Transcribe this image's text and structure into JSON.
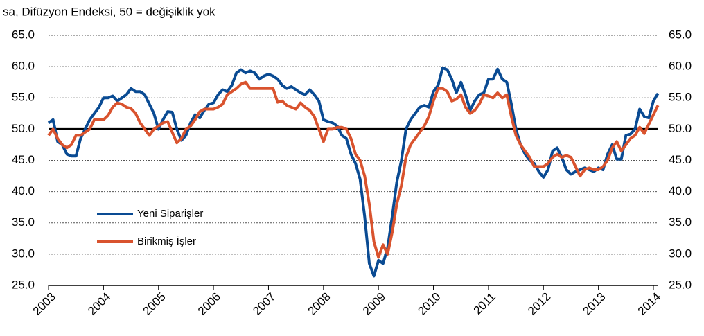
{
  "chart_data": {
    "type": "line",
    "title": "sa, Difüzyon Endeksi,  50 = değişiklik  yok",
    "categories": [
      "2003",
      null,
      null,
      null,
      null,
      null,
      null,
      null,
      null,
      null,
      null,
      null,
      "2004",
      null,
      null,
      null,
      null,
      null,
      null,
      null,
      null,
      null,
      null,
      null,
      "2005",
      null,
      null,
      null,
      null,
      null,
      null,
      null,
      null,
      null,
      null,
      null,
      "2006",
      null,
      null,
      null,
      null,
      null,
      null,
      null,
      null,
      null,
      null,
      null,
      "2007",
      null,
      null,
      null,
      null,
      null,
      null,
      null,
      null,
      null,
      null,
      null,
      "2008",
      null,
      null,
      null,
      null,
      null,
      null,
      null,
      null,
      null,
      null,
      null,
      "2009",
      null,
      null,
      null,
      null,
      null,
      null,
      null,
      null,
      null,
      null,
      null,
      "2010",
      null,
      null,
      null,
      null,
      null,
      null,
      null,
      null,
      null,
      null,
      null,
      "2011",
      null,
      null,
      null,
      null,
      null,
      null,
      null,
      null,
      null,
      null,
      null,
      "2012",
      null,
      null,
      null,
      null,
      null,
      null,
      null,
      null,
      null,
      null,
      null,
      "2013",
      null,
      null,
      null,
      null,
      null,
      null,
      null,
      null,
      null,
      null,
      null,
      "2014",
      null
    ],
    "series": [
      {
        "name": "Yeni Siparişler",
        "color": "#0a4b93",
        "values": [
          51,
          51.5,
          48,
          47.5,
          46,
          45.7,
          45.7,
          48.5,
          50,
          51.5,
          52.5,
          53.5,
          55,
          55,
          55.3,
          54.5,
          55,
          55.5,
          56.5,
          56,
          56,
          55.5,
          54,
          52.5,
          50,
          51.5,
          52.8,
          52.7,
          50,
          48.2,
          49,
          51,
          52.3,
          51.8,
          53,
          54,
          54.2,
          55.5,
          56.3,
          56,
          57,
          59,
          59.5,
          59,
          59.3,
          59,
          58,
          58.5,
          58.8,
          58.5,
          58,
          57,
          56.5,
          56.8,
          56.3,
          55.8,
          55.5,
          56.3,
          55.5,
          54.5,
          51.5,
          51.2,
          51,
          50.5,
          49,
          48.5,
          46,
          44.5,
          42,
          36,
          28.5,
          26.5,
          29,
          28.5,
          31,
          36,
          41.5,
          45,
          50,
          51.5,
          52.5,
          53.5,
          53.8,
          53.5,
          56,
          57,
          59.8,
          59.5,
          58,
          55.8,
          57.5,
          55.5,
          53,
          54.5,
          55.5,
          55.8,
          58,
          58,
          59.6,
          58,
          57.5,
          54,
          50,
          47.5,
          46,
          45,
          44.5,
          43.2,
          42.3,
          43.5,
          46.5,
          47,
          45.5,
          43.5,
          42.8,
          43.2,
          43.5,
          43.8,
          43.5,
          43.2,
          43.8,
          43.5,
          46,
          47.5,
          45.2,
          45.2,
          49,
          49.2,
          50,
          53.2,
          52,
          51.8,
          54.5,
          55.7
        ]
      },
      {
        "name": "Birikmiş İşler",
        "color": "#d9532e",
        "values": [
          49,
          50,
          48.5,
          47.5,
          47,
          47.5,
          49,
          49,
          49.5,
          50,
          51.5,
          51.5,
          51.5,
          52.2,
          53.5,
          54.2,
          54,
          53.5,
          53.3,
          52.5,
          51,
          50,
          49,
          50,
          50.5,
          51,
          51.2,
          49.5,
          47.8,
          48.5,
          50,
          50.5,
          51.5,
          52.8,
          53.2,
          53.2,
          53.2,
          53.5,
          54,
          55.5,
          56,
          56.5,
          57.2,
          57.5,
          56.5,
          56.5,
          56.5,
          56.5,
          56.5,
          56.5,
          54.3,
          54.5,
          53.8,
          53.5,
          53.2,
          54.2,
          53.5,
          53,
          52,
          50,
          48,
          50,
          50,
          50.3,
          50.3,
          50,
          48.5,
          46,
          45,
          42.5,
          38,
          32,
          29.5,
          31.5,
          30,
          33.5,
          38,
          41,
          45.5,
          47.5,
          48.5,
          49.5,
          50.5,
          52,
          54.5,
          56.5,
          56.5,
          56,
          54.5,
          54.8,
          55.5,
          53.5,
          52.5,
          53,
          54,
          55.5,
          55.3,
          55,
          55.8,
          55,
          55.5,
          52,
          49,
          47.5,
          46.5,
          45.5,
          44,
          44,
          44,
          44.5,
          45.5,
          46,
          45.5,
          45.8,
          45.5,
          44,
          42.5,
          43.5,
          43.8,
          43.5,
          43.5,
          44,
          45,
          47,
          48,
          46.5,
          47.5,
          48.5,
          49,
          50.3,
          49.3,
          50.8,
          52.3,
          53.8
        ]
      }
    ],
    "ylim": [
      25,
      65
    ],
    "yticks": [
      {
        "value": 25,
        "label": "25.0"
      },
      {
        "value": 30,
        "label": "30.0"
      },
      {
        "value": 35,
        "label": "35.0"
      },
      {
        "value": 40,
        "label": "40.0"
      },
      {
        "value": 45,
        "label": "45.0"
      },
      {
        "value": 50,
        "label": "50.0"
      },
      {
        "value": 55,
        "label": "55.0"
      },
      {
        "value": 60,
        "label": "60.0"
      },
      {
        "value": 65,
        "label": "65.0"
      }
    ],
    "y2lim": [
      25,
      65
    ],
    "y2ticks": [
      {
        "value": 25,
        "label": "25.0"
      },
      {
        "value": 30,
        "label": "30.0"
      },
      {
        "value": 35,
        "label": "35.0"
      },
      {
        "value": 40,
        "label": "40.0"
      },
      {
        "value": 45,
        "label": "45.0"
      },
      {
        "value": 50,
        "label": "50.0"
      },
      {
        "value": 55,
        "label": "55.0"
      },
      {
        "value": 60,
        "label": "60.0"
      },
      {
        "value": 65,
        "label": "65.0"
      }
    ],
    "hline": 50,
    "grid": true,
    "legend": "left"
  }
}
